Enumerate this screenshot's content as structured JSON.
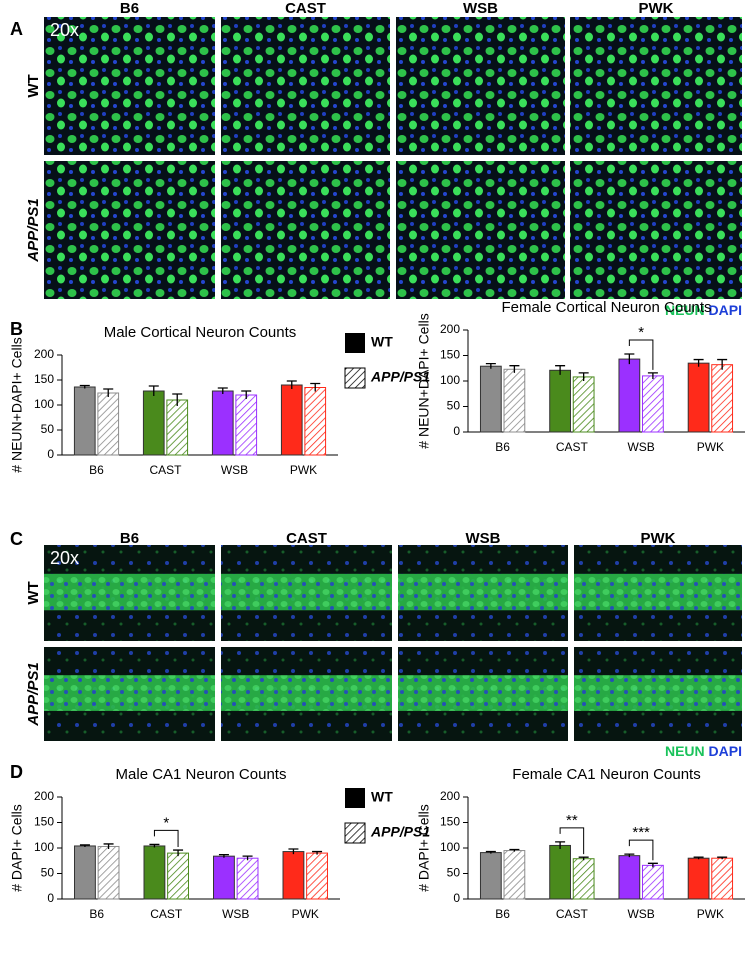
{
  "panel_labels": [
    "A",
    "B",
    "C",
    "D"
  ],
  "image_panels": [
    {
      "magnification": "20x",
      "columns": [
        "B6",
        "CAST",
        "WSB",
        "PWK"
      ],
      "rows": [
        "WT",
        "APP/PS1"
      ],
      "stain": [
        "NEUN",
        "DAPI"
      ]
    },
    {
      "magnification": "20x",
      "columns": [
        "B6",
        "CAST",
        "WSB",
        "PWK"
      ],
      "rows": [
        "WT",
        "APP/PS1"
      ],
      "stain": [
        "NEUN",
        "DAPI"
      ]
    }
  ],
  "chart_data": [
    {
      "type": "bar",
      "title": "Male Cortical Neuron Counts",
      "y_label": "# NEUN+DAPI+ Cells",
      "categories": [
        "B6",
        "CAST",
        "WSB",
        "PWK"
      ],
      "category_colors": [
        "#8c8c8c",
        "#4a8a1c",
        "#9b30ff",
        "#ff2a1a"
      ],
      "series": [
        {
          "name": "WT",
          "pattern": "solid",
          "values": [
            136,
            128,
            128,
            140
          ],
          "errors": [
            3,
            10,
            6,
            8
          ]
        },
        {
          "name": "APP/PS1",
          "pattern": "hatch",
          "values": [
            124,
            110,
            120,
            135
          ],
          "errors": [
            8,
            12,
            8,
            8
          ]
        }
      ],
      "ylim": [
        0,
        200
      ],
      "yticks": [
        0,
        50,
        100,
        150,
        200
      ],
      "annotations": []
    },
    {
      "type": "bar",
      "title": "Female Cortical Neuron Counts",
      "y_label": "# NEUN+DAPI+ Cells",
      "categories": [
        "B6",
        "CAST",
        "WSB",
        "PWK"
      ],
      "category_colors": [
        "#8c8c8c",
        "#4a8a1c",
        "#9b30ff",
        "#ff2a1a"
      ],
      "series": [
        {
          "name": "WT",
          "pattern": "solid",
          "values": [
            129,
            121,
            143,
            135
          ],
          "errors": [
            5,
            9,
            10,
            7
          ]
        },
        {
          "name": "APP/PS1",
          "pattern": "hatch",
          "values": [
            123,
            108,
            110,
            132
          ],
          "errors": [
            7,
            8,
            6,
            10
          ]
        }
      ],
      "ylim": [
        0,
        200
      ],
      "yticks": [
        0,
        50,
        100,
        150,
        200
      ],
      "annotations": [
        {
          "text": "*",
          "category": "WSB"
        }
      ]
    },
    {
      "type": "bar",
      "title": "Male CA1 Neuron Counts",
      "y_label": "# DAPI+ Cells",
      "categories": [
        "B6",
        "CAST",
        "WSB",
        "PWK"
      ],
      "category_colors": [
        "#8c8c8c",
        "#4a8a1c",
        "#9b30ff",
        "#ff2a1a"
      ],
      "series": [
        {
          "name": "WT",
          "pattern": "solid",
          "values": [
            104,
            104,
            84,
            93
          ],
          "errors": [
            2,
            3,
            3,
            5
          ]
        },
        {
          "name": "APP/PS1",
          "pattern": "hatch",
          "values": [
            103,
            90,
            80,
            90
          ],
          "errors": [
            5,
            6,
            4,
            3
          ]
        }
      ],
      "ylim": [
        0,
        200
      ],
      "yticks": [
        0,
        50,
        100,
        150,
        200
      ],
      "annotations": [
        {
          "text": "*",
          "category": "CAST"
        }
      ]
    },
    {
      "type": "bar",
      "title": "Female CA1 Neuron Counts",
      "y_label": "# DAPI+ Cells",
      "categories": [
        "B6",
        "CAST",
        "WSB",
        "PWK"
      ],
      "category_colors": [
        "#8c8c8c",
        "#4a8a1c",
        "#9b30ff",
        "#ff2a1a"
      ],
      "series": [
        {
          "name": "WT",
          "pattern": "solid",
          "values": [
            91,
            105,
            85,
            80
          ],
          "errors": [
            2,
            7,
            3,
            2
          ]
        },
        {
          "name": "APP/PS1",
          "pattern": "hatch",
          "values": [
            95,
            79,
            66,
            80
          ],
          "errors": [
            2,
            3,
            4,
            2
          ]
        }
      ],
      "ylim": [
        0,
        200
      ],
      "yticks": [
        0,
        50,
        100,
        150,
        200
      ],
      "annotations": [
        {
          "text": "**",
          "category": "CAST"
        },
        {
          "text": "***",
          "category": "WSB"
        }
      ]
    }
  ]
}
